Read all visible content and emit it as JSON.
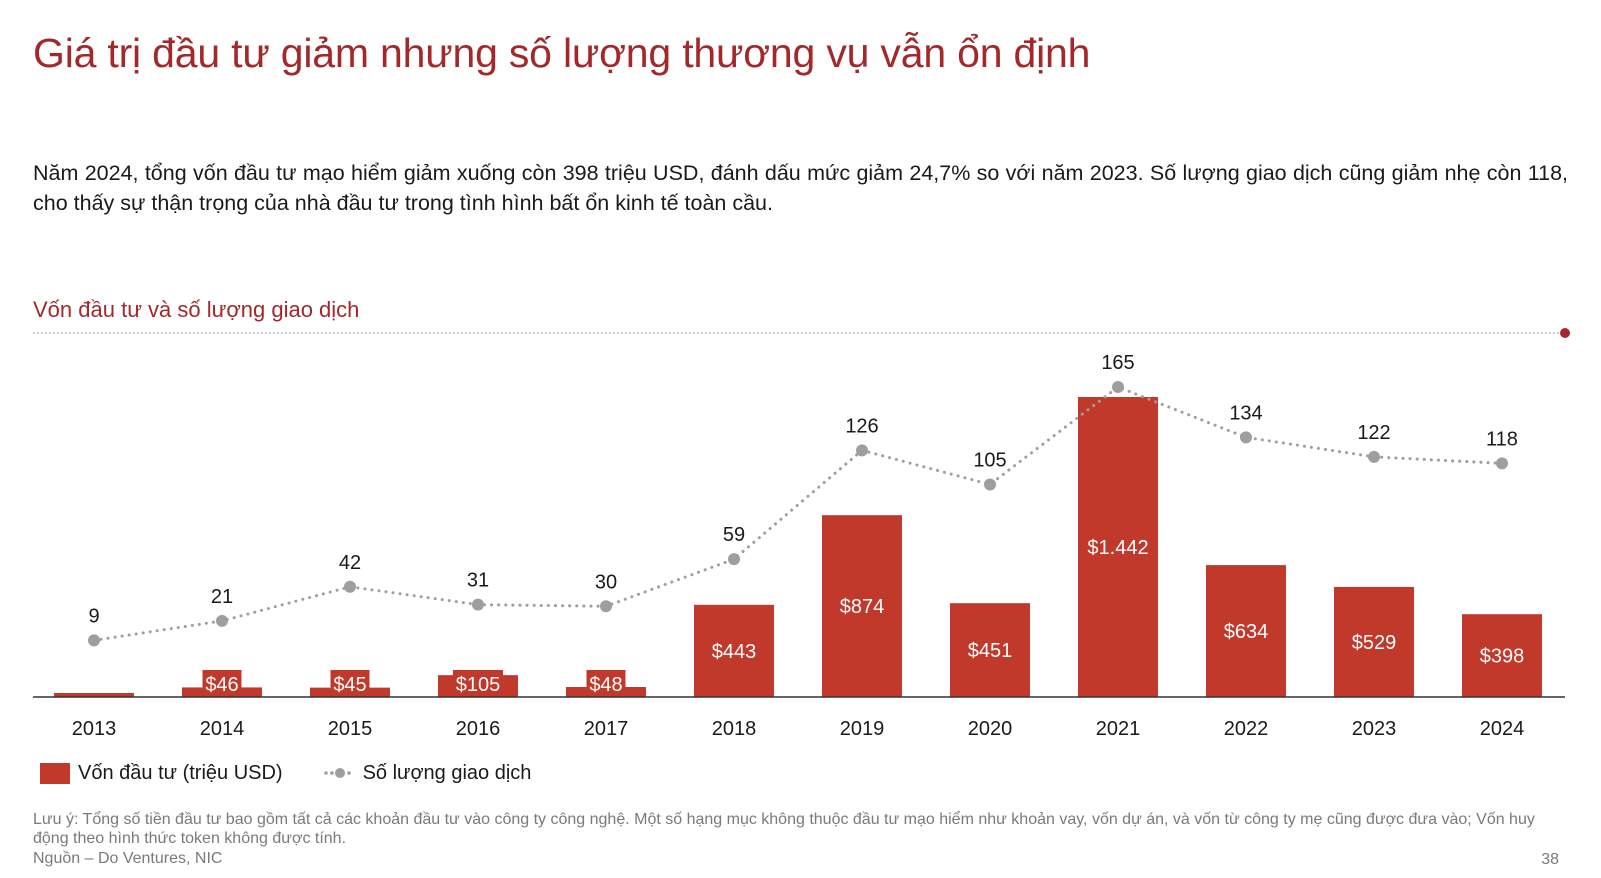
{
  "page": {
    "title": "Giá trị đầu tư giảm nhưng số lượng thương vụ vẫn ổn định",
    "intro": "Năm 2024, tổng vốn đầu tư mạo hiểm giảm xuống còn 398 triệu USD, đánh dấu mức giảm 24,7% so với năm 2023. Số lượng giao dịch cũng giảm nhẹ còn 118, cho thấy sự thận trọng của nhà đầu tư trong tình hình bất ổn kinh tế toàn cầu.",
    "chart_title": "Vốn đầu tư và số lượng giao dịch",
    "note": "Lưu ý: Tổng số tiền đầu tư bao gồm tất cả các khoản đầu tư vào công ty công nghệ. Một số hạng mục không thuộc đầu tư mạo hiểm như khoản vay, vốn dự án, và vốn từ công ty mẹ cũng được đưa vào; Vốn huy động theo hình thức token không được tính.",
    "source": "Nguồn – Do Ventures, NIC",
    "page_number": "38"
  },
  "colors": {
    "accent": "#a3282b",
    "bar": "#c0392b",
    "line": "#9e9e9e"
  },
  "chart_data": {
    "type": "bar",
    "categories": [
      "2013",
      "2014",
      "2015",
      "2016",
      "2017",
      "2018",
      "2019",
      "2020",
      "2021",
      "2022",
      "2023",
      "2024"
    ],
    "series": [
      {
        "name": "Vốn đầu tư (triệu USD)",
        "type": "bar",
        "axis": "left",
        "values": [
          12,
          46,
          45,
          105,
          48,
          443,
          874,
          451,
          1442,
          634,
          529,
          398
        ],
        "labels": [
          "",
          "$46",
          "$45",
          "$105",
          "$48",
          "$443",
          "$874",
          "$451",
          "$1.442",
          "$634",
          "$529",
          "$398"
        ]
      },
      {
        "name": "Số lượng giao dịch",
        "type": "line",
        "axis": "right",
        "values": [
          9,
          21,
          42,
          31,
          30,
          59,
          126,
          105,
          165,
          134,
          122,
          118
        ],
        "labels": [
          "9",
          "21",
          "42",
          "31",
          "30",
          "59",
          "126",
          "105",
          "165",
          "134",
          "122",
          "118"
        ]
      }
    ],
    "legend": "bottom-left"
  }
}
